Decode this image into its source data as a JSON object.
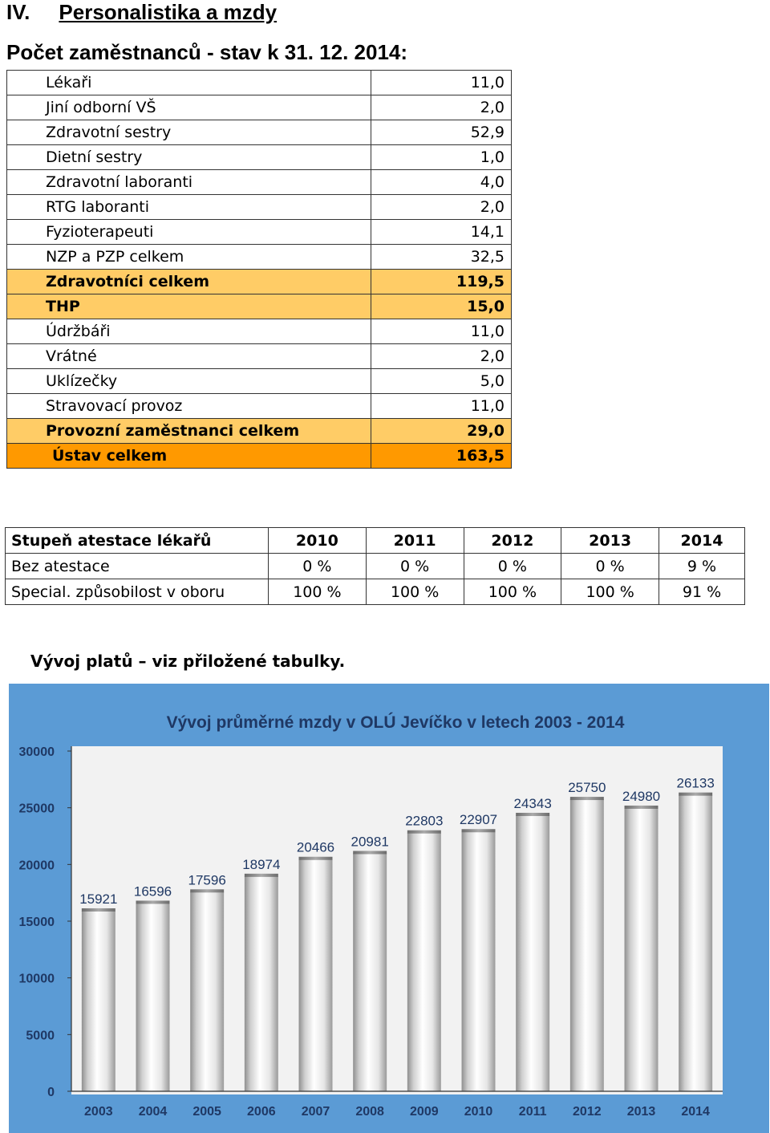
{
  "section": {
    "number": "IV.",
    "title": "Personalistika a mzdy"
  },
  "staff_heading": "Počet zaměstnanců - stav k 31. 12. 2014:",
  "staff_rows": [
    {
      "label": "Lékaři",
      "value": "11,0",
      "style": "normal"
    },
    {
      "label": "Jiní odborní VŠ",
      "value": "2,0",
      "style": "normal"
    },
    {
      "label": "Zdravotní sestry",
      "value": "52,9",
      "style": "normal"
    },
    {
      "label": "Dietní sestry",
      "value": "1,0",
      "style": "normal"
    },
    {
      "label": "Zdravotní laboranti",
      "value": "4,0",
      "style": "normal"
    },
    {
      "label": "RTG laboranti",
      "value": "2,0",
      "style": "normal"
    },
    {
      "label": "Fyzioterapeuti",
      "value": "14,1",
      "style": "normal"
    },
    {
      "label": "NZP a PZP celkem",
      "value": "32,5",
      "style": "normal"
    },
    {
      "label": "Zdravotníci celkem",
      "value": "119,5",
      "style": "sub"
    },
    {
      "label": "THP",
      "value": "15,0",
      "style": "sub"
    },
    {
      "label": "Údržbáři",
      "value": "11,0",
      "style": "normal"
    },
    {
      "label": "Vrátné",
      "value": "2,0",
      "style": "normal"
    },
    {
      "label": "Uklízečky",
      "value": "5,0",
      "style": "normal"
    },
    {
      "label": "Stravovací provoz",
      "value": "11,0",
      "style": "normal"
    },
    {
      "label": "Provozní zaměstnanci celkem",
      "value": "29,0",
      "style": "sub"
    },
    {
      "label": "Ústav celkem",
      "value": "163,5",
      "style": "total"
    }
  ],
  "attestation": {
    "header": [
      "Stupeň atestace lékařů",
      "2010",
      "2011",
      "2012",
      "2013",
      "2014"
    ],
    "rows": [
      [
        "Bez atestace",
        "0 %",
        "0 %",
        "0 %",
        "0 %",
        "9 %"
      ],
      [
        "Special. způsobilost  v oboru",
        "100 %",
        "100 %",
        "100 %",
        "100 %",
        "91 %"
      ]
    ]
  },
  "salary_note": "Vývoj platů – viz přiložené tabulky.",
  "colors": {
    "subtotal": "#ffcc66",
    "total": "#ff9900",
    "chart_frame": "#5b9bd5",
    "chart_title": "#1f3864"
  },
  "chart_data": {
    "type": "bar",
    "title": "Vývoj průměrné mzdy v OLÚ Jevíčko v letech 2003 - 2014",
    "categories": [
      "2003",
      "2004",
      "2005",
      "2006",
      "2007",
      "2008",
      "2009",
      "2010",
      "2011",
      "2012",
      "2013",
      "2014"
    ],
    "values": [
      15921,
      16596,
      17596,
      18974,
      20466,
      20981,
      22803,
      22907,
      24343,
      25750,
      24980,
      26133
    ],
    "yticks": [
      0,
      5000,
      10000,
      15000,
      20000,
      25000,
      30000
    ],
    "ylim": [
      0,
      30000
    ],
    "grid": false,
    "legend": "none"
  }
}
